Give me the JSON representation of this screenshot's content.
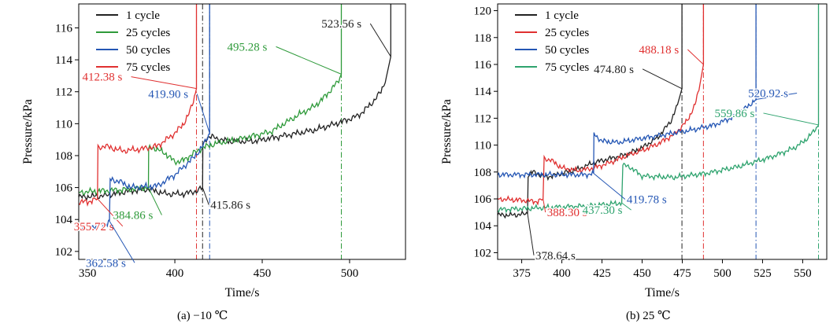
{
  "captions": {
    "a": "(a) −10 ℃",
    "b": "(b) 25 ℃"
  },
  "chart_data": [
    {
      "type": "line",
      "xlabel": "Time/s",
      "ylabel": "Pressure/kPa",
      "xlim": [
        345,
        532
      ],
      "ylim": [
        101.5,
        117.5
      ],
      "xticks": [
        350,
        400,
        450,
        500
      ],
      "yticks": [
        102,
        104,
        106,
        108,
        110,
        112,
        114,
        116
      ],
      "legend_position": "top-left",
      "series": [
        {
          "name": "1 cycle",
          "color": "#222222",
          "x": [
            345,
            360,
            375,
            385,
            395,
            405,
            413,
            415.86,
            416,
            418,
            420,
            430,
            445,
            460,
            480,
            495,
            505,
            512,
            518,
            521,
            523.56
          ],
          "y": [
            105.4,
            105.5,
            105.8,
            105.9,
            105.6,
            105.6,
            105.8,
            106.0,
            108.6,
            109.1,
            109.2,
            108.9,
            108.9,
            109.2,
            109.6,
            110.1,
            110.5,
            111.2,
            112.0,
            112.9,
            114.2
          ],
          "event_time": 415.86,
          "event_label": "415.86 s"
        },
        {
          "name": "25 cycles",
          "color": "#2e9a3a",
          "x": [
            345,
            360,
            375,
            384.86,
            385,
            388,
            395,
            400,
            405,
            410,
            416,
            425,
            440,
            455,
            470,
            480,
            485,
            490,
            493,
            495.28
          ],
          "y": [
            105.7,
            105.8,
            105.9,
            106.0,
            108.4,
            108.5,
            108.1,
            107.6,
            107.7,
            108.1,
            108.5,
            108.8,
            109.1,
            109.5,
            110.5,
            111.1,
            111.6,
            112.2,
            112.6,
            113.1
          ],
          "event_time": 495.28,
          "event_label": "495.28 s"
        },
        {
          "name": "50 cycles",
          "color": "#2456b4",
          "x": [
            345,
            355,
            362,
            362.58,
            363,
            368,
            375,
            390,
            400,
            405,
            410,
            414,
            416,
            418,
            419.9
          ],
          "y": [
            103.5,
            103.6,
            103.8,
            103.9,
            106.5,
            106.4,
            106.0,
            106.1,
            106.8,
            107.3,
            107.8,
            108.3,
            108.6,
            109.0,
            109.4
          ],
          "event_time": 419.9,
          "event_label": "419.90 s"
        },
        {
          "name": "75 cycles",
          "color": "#e03030",
          "x": [
            345,
            350,
            355.72,
            356,
            360,
            370,
            380,
            390,
            395,
            400,
            405,
            408,
            410,
            412.38
          ],
          "y": [
            105.1,
            105.1,
            105.3,
            108.5,
            108.6,
            108.3,
            108.4,
            108.6,
            109.0,
            109.4,
            110.0,
            110.6,
            111.2,
            112.2
          ],
          "event_time": 412.38,
          "event_label": "412.38 s"
        }
      ],
      "annotations": [
        {
          "text": "355.72 s",
          "series": "75 cycles",
          "event_time": 355.72
        },
        {
          "text": "362.58 s",
          "series": "50 cycles",
          "event_time": 362.58
        },
        {
          "text": "384.86 s",
          "series": "25 cycles",
          "event_time": 384.86
        },
        {
          "text": "415.86 s",
          "series": "1 cycle",
          "event_time": 415.86
        },
        {
          "text": "412.38 s",
          "series": "75 cycles",
          "event_time": 412.38
        },
        {
          "text": "419.90 s",
          "series": "50 cycles",
          "event_time": 419.9
        },
        {
          "text": "495.28 s",
          "series": "25 cycles",
          "event_time": 495.28
        },
        {
          "text": "523.56 s",
          "series": "1 cycle",
          "event_time": 523.56
        }
      ]
    },
    {
      "type": "line",
      "xlabel": "Time/s",
      "ylabel": "Pressure/kPa",
      "xlim": [
        360,
        565
      ],
      "ylim": [
        101.5,
        120.5
      ],
      "xticks": [
        375,
        400,
        425,
        450,
        475,
        500,
        525,
        550
      ],
      "yticks": [
        102,
        104,
        106,
        108,
        110,
        112,
        114,
        116,
        118,
        120
      ],
      "legend_position": "top-left",
      "series": [
        {
          "name": "1 cycle",
          "color": "#222222",
          "x": [
            360,
            370,
            378.64,
            379,
            382,
            390,
            400,
            410,
            420,
            430,
            440,
            450,
            460,
            468,
            472,
            474.8
          ],
          "y": [
            104.8,
            104.8,
            104.9,
            107.8,
            108.0,
            107.6,
            107.9,
            108.2,
            108.7,
            109.0,
            109.3,
            109.8,
            110.6,
            111.8,
            113.0,
            114.2
          ],
          "event_time": 474.8,
          "event_label": "474.80 s"
        },
        {
          "name": "25 cycles",
          "color": "#e03030",
          "x": [
            360,
            375,
            385,
            388.3,
            389,
            393,
            400,
            410,
            420,
            430,
            440,
            450,
            460,
            470,
            478,
            483,
            486,
            488.18
          ],
          "y": [
            106.0,
            105.9,
            105.8,
            106.0,
            109.0,
            108.9,
            108.3,
            108.1,
            108.3,
            108.7,
            109.2,
            109.6,
            110.1,
            110.8,
            111.8,
            113.0,
            114.5,
            116.0
          ],
          "event_time": 488.18,
          "event_label": "488.18 s"
        },
        {
          "name": "50 cycles",
          "color": "#2456b4",
          "x": [
            360,
            380,
            400,
            415,
            419.78,
            420,
            425,
            435,
            450,
            465,
            480,
            495,
            505,
            515,
            520.92
          ],
          "y": [
            107.8,
            107.8,
            107.8,
            107.8,
            107.9,
            110.8,
            110.3,
            110.2,
            110.5,
            110.8,
            111.1,
            111.5,
            112.0,
            112.8,
            113.4
          ],
          "event_time": 520.92,
          "event_label": "520.92 s"
        },
        {
          "name": "75 cycles",
          "color": "#2ea36e",
          "x": [
            360,
            380,
            400,
            420,
            437.3,
            438,
            442,
            450,
            470,
            490,
            510,
            530,
            545,
            552,
            556,
            559.86
          ],
          "y": [
            105.2,
            105.3,
            105.4,
            105.5,
            105.7,
            108.5,
            108.4,
            107.7,
            107.6,
            107.9,
            108.4,
            109.1,
            109.8,
            110.4,
            110.9,
            111.5
          ],
          "event_time": 559.86,
          "event_label": "559.86 s"
        }
      ],
      "annotations": [
        {
          "text": "388.30 s",
          "series": "25 cycles",
          "event_time": 388.3
        },
        {
          "text": "378.64 s",
          "series": "1 cycle",
          "event_time": 378.64
        },
        {
          "text": "437.30 s",
          "series": "75 cycles",
          "event_time": 437.3
        },
        {
          "text": "419.78 s",
          "series": "50 cycles",
          "event_time": 419.78
        },
        {
          "text": "474.80 s",
          "series": "1 cycle",
          "event_time": 474.8
        },
        {
          "text": "488.18 s",
          "series": "25 cycles",
          "event_time": 488.18
        },
        {
          "text": "520.92 s",
          "series": "50 cycles",
          "event_time": 520.92
        },
        {
          "text": "559.86 s",
          "series": "75 cycles",
          "event_time": 559.86
        }
      ]
    }
  ]
}
